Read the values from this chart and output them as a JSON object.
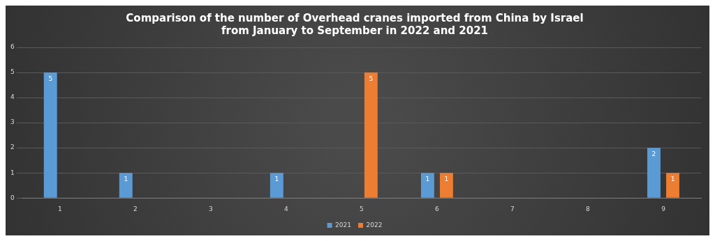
{
  "chart_data": {
    "type": "bar",
    "title": "Comparison of the number of Overhead cranes imported from China by Israel from January to September in 2022 and 2021",
    "categories": [
      "1",
      "2",
      "3",
      "4",
      "5",
      "6",
      "7",
      "8",
      "9"
    ],
    "series": [
      {
        "name": "2021",
        "color": "#5b9bd5",
        "values": [
          5,
          1,
          0,
          1,
          0,
          1,
          0,
          0,
          2
        ],
        "value_labels": [
          "5",
          "1",
          null,
          "1",
          null,
          "1",
          null,
          null,
          "2"
        ]
      },
      {
        "name": "2022",
        "color": "#ed7d31",
        "values": [
          0,
          0,
          0,
          0,
          5,
          1,
          0,
          0,
          1
        ],
        "value_labels": [
          null,
          null,
          null,
          null,
          "5",
          "1",
          null,
          null,
          "1"
        ]
      }
    ],
    "ylim": [
      0,
      6
    ],
    "yticks": [
      0,
      1,
      2,
      3,
      4,
      5,
      6
    ],
    "grid": "y",
    "legend": "bottom"
  }
}
